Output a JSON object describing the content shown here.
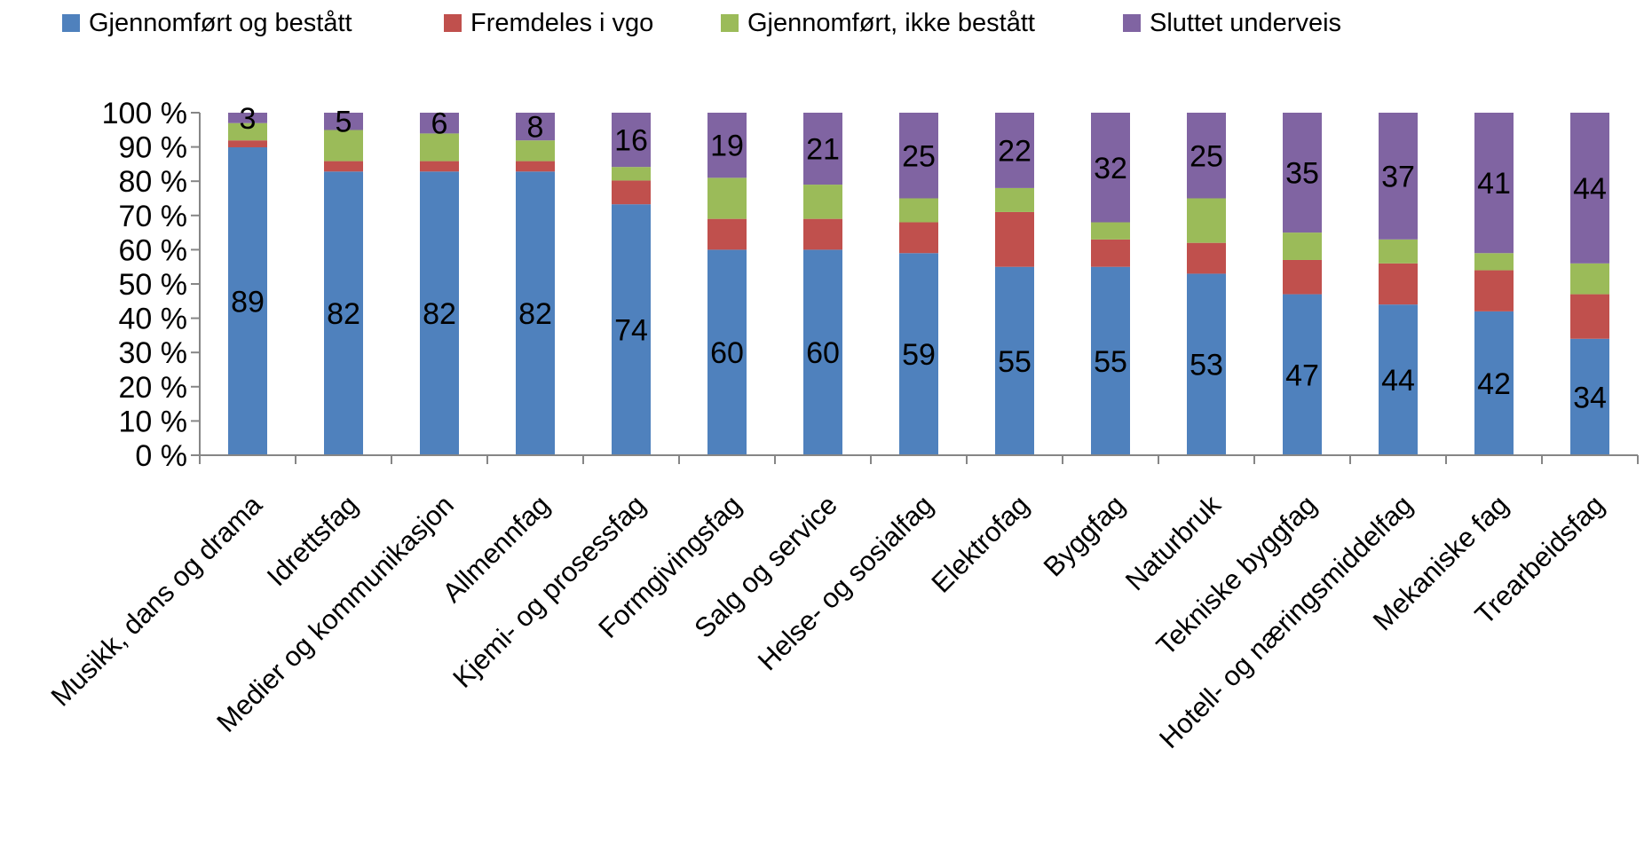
{
  "chart_data": {
    "type": "bar",
    "stacked": true,
    "percent_stacked": true,
    "categories": [
      "Musikk, dans og drama",
      "Idrettsfag",
      "Medier og kommunikasjon",
      "Allmennfag",
      "Kjemi- og prosessfag",
      "Formgivingsfag",
      "Salg og service",
      "Helse- og sosialfag",
      "Elektrofag",
      "Byggfag",
      "Naturbruk",
      "Tekniske byggfag",
      "Hotell- og næringsmiddelfag",
      "Mekaniske fag",
      "Trearbeidsfag"
    ],
    "series": [
      {
        "name": "Gjennomført og bestått",
        "color": "#4F81BD",
        "values": [
          89,
          82,
          82,
          82,
          74,
          60,
          60,
          59,
          55,
          55,
          53,
          47,
          44,
          42,
          34
        ],
        "labels": [
          "89",
          "82",
          "82",
          "82",
          "74",
          "60",
          "60",
          "59",
          "55",
          "55",
          "53",
          "47",
          "44",
          "42",
          "34"
        ]
      },
      {
        "name": "Fremdeles i vgo",
        "color": "#C0504D",
        "values": [
          2,
          3,
          3,
          3,
          7,
          9,
          9,
          9,
          16,
          8,
          9,
          10,
          12,
          12,
          13
        ],
        "labels": null
      },
      {
        "name": "Gjennomført, ikke bestått",
        "color": "#9BBB59",
        "values": [
          5,
          9,
          8,
          6,
          4,
          12,
          10,
          7,
          7,
          5,
          13,
          8,
          7,
          5,
          9
        ],
        "labels": null
      },
      {
        "name": "Sluttet underveis",
        "color": "#8064A2",
        "values": [
          3,
          5,
          6,
          8,
          16,
          19,
          21,
          25,
          22,
          32,
          25,
          35,
          37,
          41,
          44
        ],
        "labels": [
          "3",
          "5",
          "6",
          "8",
          "16",
          "19",
          "21",
          "25",
          "22",
          "32",
          "25",
          "35",
          "37",
          "41",
          "44"
        ]
      }
    ],
    "y_ticks": [
      "0 %",
      "10 %",
      "20 %",
      "30 %",
      "40 %",
      "50 %",
      "60 %",
      "70 %",
      "80 %",
      "90 %",
      "100 %"
    ],
    "ylim": [
      0,
      100
    ],
    "grid": false,
    "legend_position": "top",
    "title": "",
    "xlabel": "",
    "ylabel": ""
  }
}
